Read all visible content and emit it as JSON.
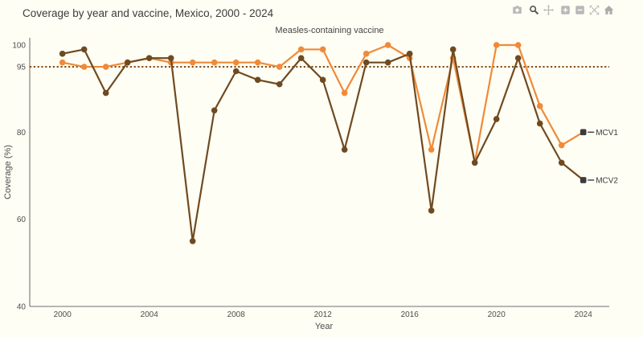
{
  "header": {
    "title": "Coverage by year and vaccine, Mexico, 2000 - 2024"
  },
  "modebar": {
    "icons": [
      "camera-icon",
      "zoom-icon",
      "pan-icon",
      "zoom-in-icon",
      "zoom-out-icon",
      "autoscale-icon",
      "reset-axes-icon"
    ]
  },
  "chart_data": {
    "type": "line",
    "title": "Coverage by year and vaccine, Mexico, 2000 - 2024",
    "subtitle": "Measles-containing vaccine",
    "xlabel": "Year",
    "ylabel": "Coverage (%)",
    "x": [
      2000,
      2001,
      2002,
      2003,
      2004,
      2005,
      2006,
      2007,
      2008,
      2009,
      2010,
      2011,
      2012,
      2013,
      2014,
      2015,
      2016,
      2017,
      2018,
      2019,
      2020,
      2021,
      2022,
      2023,
      2024
    ],
    "series": [
      {
        "name": "MCV1",
        "color": "#F08A39",
        "values": [
          96,
          95,
          95,
          96,
          97,
          96,
          96,
          96,
          96,
          96,
          95,
          99,
          99,
          89,
          98,
          100,
          97,
          76,
          97,
          73,
          100,
          100,
          86,
          77,
          80
        ]
      },
      {
        "name": "MCV2",
        "color": "#6F4A21",
        "values": [
          98,
          99,
          89,
          96,
          97,
          97,
          55,
          85,
          94,
          92,
          91,
          97,
          92,
          76,
          96,
          96,
          98,
          62,
          99,
          73,
          83,
          97,
          82,
          73,
          69
        ]
      }
    ],
    "reference_line": {
      "value": 95,
      "style": "dotted",
      "color": "#7B3F00"
    },
    "yticks": [
      40,
      60,
      80,
      95,
      100
    ],
    "xticks": [
      2000,
      2004,
      2008,
      2012,
      2016,
      2020,
      2024
    ],
    "ylim": [
      40,
      102
    ],
    "xlim": [
      1998.5,
      2025.2
    ],
    "grid": false,
    "legend_position": "end-of-line",
    "end_label_color": "#3b3b3b"
  }
}
